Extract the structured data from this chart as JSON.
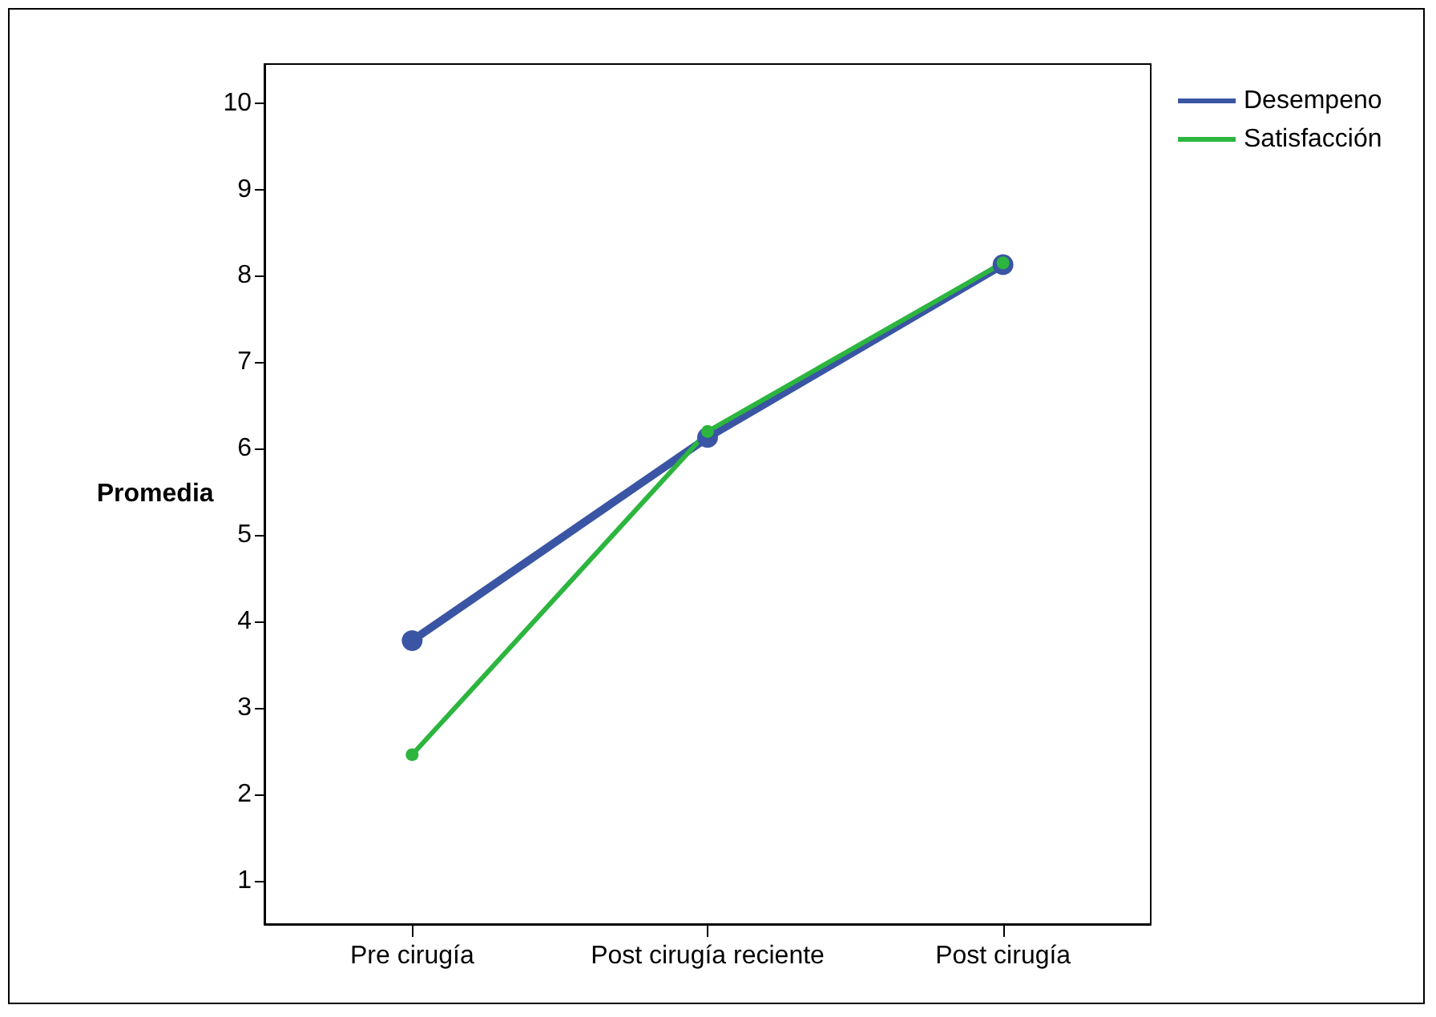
{
  "chart_data": {
    "type": "line",
    "ylabel": "Promedia",
    "categories": [
      "Pre cirugía",
      "Post cirugía reciente",
      "Post cirugía"
    ],
    "series": [
      {
        "name": "Desempeno",
        "color": "#3a55a4",
        "values": [
          3.78,
          6.13,
          8.13
        ]
      },
      {
        "name": "Satisfacción",
        "color": "#2cb53f",
        "values": [
          2.46,
          6.2,
          8.15
        ]
      }
    ],
    "ylim": [
      0.5,
      10.45
    ],
    "yticks": [
      1,
      2,
      3,
      4,
      5,
      6,
      7,
      8,
      9,
      10
    ],
    "grid": false,
    "legend": "top right",
    "marker": "circle",
    "line_style": "solid"
  }
}
